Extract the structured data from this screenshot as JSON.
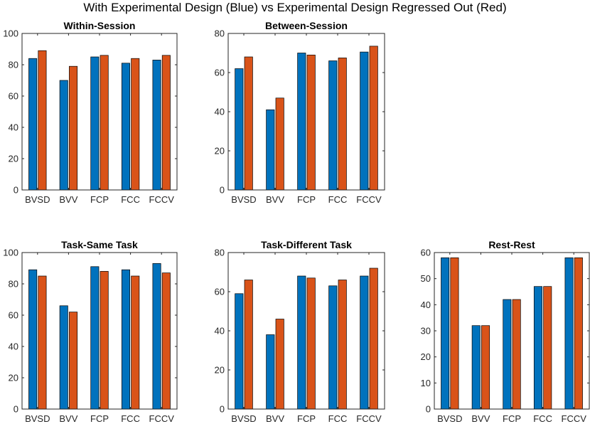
{
  "figure": {
    "title": "With Experimental Design (Blue) vs Experimental Design Regressed Out (Red)"
  },
  "colors": {
    "blue": "#0072BD",
    "red": "#D95319"
  },
  "chart_data": [
    {
      "type": "bar",
      "title": "Within-Session",
      "categories": [
        "BVSD",
        "BVV",
        "FCP",
        "FCC",
        "FCCV"
      ],
      "ylim": [
        0,
        100
      ],
      "yticks": [
        0,
        20,
        40,
        60,
        80,
        100
      ],
      "series": [
        {
          "name": "With Experimental Design",
          "color": "blue",
          "values": [
            84,
            70,
            85,
            81,
            83
          ]
        },
        {
          "name": "Experimental Design Regressed Out",
          "color": "red",
          "values": [
            89,
            79,
            86,
            84,
            86
          ]
        }
      ]
    },
    {
      "type": "bar",
      "title": "Between-Session",
      "categories": [
        "BVSD",
        "BVV",
        "FCP",
        "FCC",
        "FCCV"
      ],
      "ylim": [
        0,
        80
      ],
      "yticks": [
        0,
        20,
        40,
        60,
        80
      ],
      "series": [
        {
          "name": "With Experimental Design",
          "color": "blue",
          "values": [
            62,
            41,
            70,
            66,
            70.5
          ]
        },
        {
          "name": "Experimental Design Regressed Out",
          "color": "red",
          "values": [
            68,
            47,
            69,
            67.5,
            73.5
          ]
        }
      ]
    },
    {
      "type": "bar",
      "title": "Task-Same Task",
      "categories": [
        "BVSD",
        "BVV",
        "FCP",
        "FCC",
        "FCCV"
      ],
      "ylim": [
        0,
        100
      ],
      "yticks": [
        0,
        20,
        40,
        60,
        80,
        100
      ],
      "series": [
        {
          "name": "With Experimental Design",
          "color": "blue",
          "values": [
            89,
            66,
            91,
            89,
            93
          ]
        },
        {
          "name": "Experimental Design Regressed Out",
          "color": "red",
          "values": [
            85,
            62,
            88,
            85,
            87
          ]
        }
      ]
    },
    {
      "type": "bar",
      "title": "Task-Different Task",
      "categories": [
        "BVSD",
        "BVV",
        "FCP",
        "FCC",
        "FCCV"
      ],
      "ylim": [
        0,
        80
      ],
      "yticks": [
        0,
        20,
        40,
        60,
        80
      ],
      "series": [
        {
          "name": "With Experimental Design",
          "color": "blue",
          "values": [
            59,
            38,
            68,
            63,
            68
          ]
        },
        {
          "name": "Experimental Design Regressed Out",
          "color": "red",
          "values": [
            66,
            46,
            67,
            66,
            72
          ]
        }
      ]
    },
    {
      "type": "bar",
      "title": "Rest-Rest",
      "categories": [
        "BVSD",
        "BVV",
        "FCP",
        "FCC",
        "FCCV"
      ],
      "ylim": [
        0,
        60
      ],
      "yticks": [
        0,
        10,
        20,
        30,
        40,
        50,
        60
      ],
      "series": [
        {
          "name": "With Experimental Design",
          "color": "blue",
          "values": [
            58,
            32,
            42,
            47,
            58
          ]
        },
        {
          "name": "Experimental Design Regressed Out",
          "color": "red",
          "values": [
            58,
            32,
            42,
            47,
            58
          ]
        }
      ]
    }
  ]
}
